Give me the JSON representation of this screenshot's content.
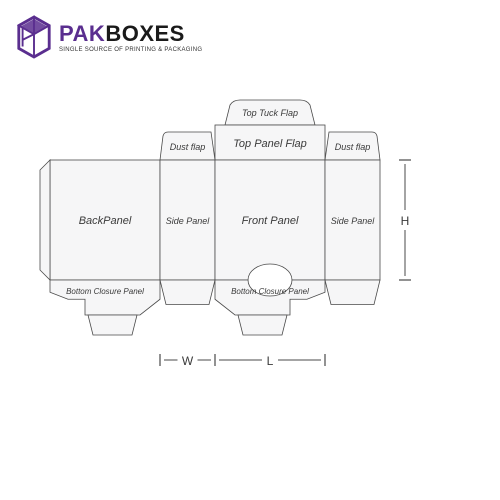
{
  "logo": {
    "brand_pak": "PAK",
    "brand_boxes": "BOXES",
    "tagline": "SINGLE SOURCE OF PRINTING & PACKAGING",
    "pak_color": "#5a2e8f",
    "boxes_color": "#1a1a1a",
    "icon_color": "#5a2e8f"
  },
  "diagram": {
    "stroke_color": "#4a4a4a",
    "fill_color": "#f6f6f7",
    "stroke_width": 0.8,
    "label_color": "#3a3a3a",
    "label_fontsize": 11,
    "small_label_fontsize": 9,
    "dim_fontsize": 12,
    "panels": {
      "back_panel": "BackPanel",
      "side_panel": "Side Panel",
      "front_panel": "Front Panel",
      "dust_flap": "Dust flap",
      "top_panel_flap": "Top Panel Flap",
      "top_tuck_flap": "Top Tuck Flap",
      "bottom_closure_panel": "Bottom Closure Panel"
    },
    "dimensions": {
      "w": "W",
      "l": "L",
      "h": "H"
    },
    "layout": {
      "back_w": 110,
      "side_w": 55,
      "front_w": 110,
      "side2_w": 55,
      "main_h": 120,
      "dust_h": 28,
      "top_flap_h": 35,
      "top_tuck_h": 25,
      "bottom_h": 35,
      "tab_h": 20
    }
  }
}
